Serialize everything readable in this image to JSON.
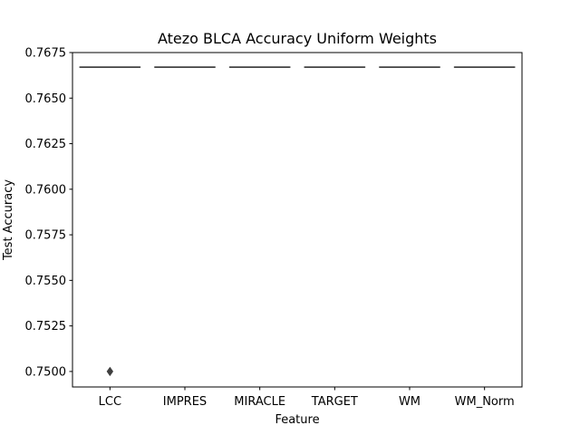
{
  "chart_data": {
    "type": "box",
    "title": "Atezo BLCA Accuracy Uniform Weights",
    "xlabel": "Feature",
    "ylabel": "Test Accuracy",
    "categories": [
      "LCC",
      "IMPRES",
      "MIRACLE",
      "TARGET",
      "WM",
      "WM_Norm"
    ],
    "ylim": [
      0.74915,
      0.7675
    ],
    "yticks": [
      0.75,
      0.7525,
      0.755,
      0.7575,
      0.76,
      0.7625,
      0.765,
      0.7675
    ],
    "ytick_labels": [
      "0.7500",
      "0.7525",
      "0.7550",
      "0.7575",
      "0.7600",
      "0.7625",
      "0.7650",
      "0.7675"
    ],
    "boxes": [
      {
        "category": "LCC",
        "median": 0.7667,
        "q1": 0.7667,
        "q3": 0.7667,
        "whisker_low": 0.7667,
        "whisker_high": 0.7667,
        "outliers": [
          0.75
        ]
      },
      {
        "category": "IMPRES",
        "median": 0.7667,
        "q1": 0.7667,
        "q3": 0.7667,
        "whisker_low": 0.7667,
        "whisker_high": 0.7667,
        "outliers": []
      },
      {
        "category": "MIRACLE",
        "median": 0.7667,
        "q1": 0.7667,
        "q3": 0.7667,
        "whisker_low": 0.7667,
        "whisker_high": 0.7667,
        "outliers": []
      },
      {
        "category": "TARGET",
        "median": 0.7667,
        "q1": 0.7667,
        "q3": 0.7667,
        "whisker_low": 0.7667,
        "whisker_high": 0.7667,
        "outliers": []
      },
      {
        "category": "WM",
        "median": 0.7667,
        "q1": 0.7667,
        "q3": 0.7667,
        "whisker_low": 0.7667,
        "whisker_high": 0.7667,
        "outliers": []
      },
      {
        "category": "WM_Norm",
        "median": 0.7667,
        "q1": 0.7667,
        "q3": 0.7667,
        "whisker_low": 0.7667,
        "whisker_high": 0.7667,
        "outliers": []
      }
    ],
    "grid": false,
    "legend": "none",
    "colors": {
      "box_line": "#3f3f3f",
      "outlier": "#3f3f3f",
      "axis": "#000000",
      "background": "#ffffff"
    }
  }
}
